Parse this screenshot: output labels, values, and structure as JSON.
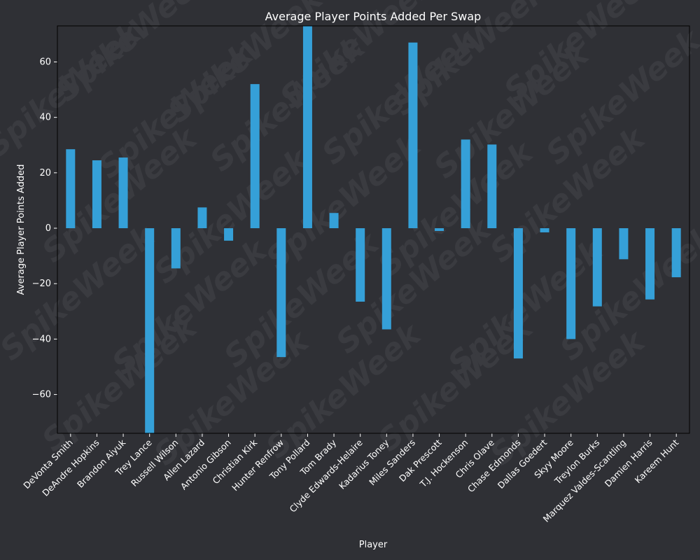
{
  "colors": {
    "background": "#2f3035",
    "bar": "#35a0d8",
    "text": "#ffffff",
    "axis": "#000000",
    "watermark": "#3a3b40"
  },
  "watermark_text": "SpikeWeek",
  "chart_data": {
    "type": "bar",
    "title": "Average Player Points Added Per Swap",
    "xlabel": "Player",
    "ylabel": "Average Player Points Added",
    "ylim": [
      -74,
      73
    ],
    "yticks": [
      -60,
      -40,
      -20,
      0,
      20,
      40,
      60
    ],
    "grid": false,
    "legend": "none",
    "categories": [
      "DeVonta Smith",
      "DeAndre Hopkins",
      "Brandon Aiyuk",
      "Trey Lance",
      "Russell Wilson",
      "Allen Lazard",
      "Antonio Gibson",
      "Christian Kirk",
      "Hunter Renfrow",
      "Tony Pollard",
      "Tom Brady",
      "Clyde Edwards-Helaire",
      "Kadarius Toney",
      "Miles Sanders",
      "Dak Prescott",
      "T.J. Hockenson",
      "Chris Olave",
      "Chase Edmonds",
      "Dallas Goedert",
      "Skyy Moore",
      "Treylon Burks",
      "Marquez Valdes-Scantling",
      "Damien Harris",
      "Kareem Hunt"
    ],
    "values": [
      28.5,
      24.5,
      25.5,
      -75,
      -14.5,
      7.5,
      -4.5,
      52,
      -46.5,
      74,
      5.5,
      -26.5,
      -36.5,
      67,
      -1,
      32,
      30.2,
      -47,
      -1.5,
      -40,
      -28.2,
      -11.2,
      -25.7,
      -17.7
    ]
  }
}
